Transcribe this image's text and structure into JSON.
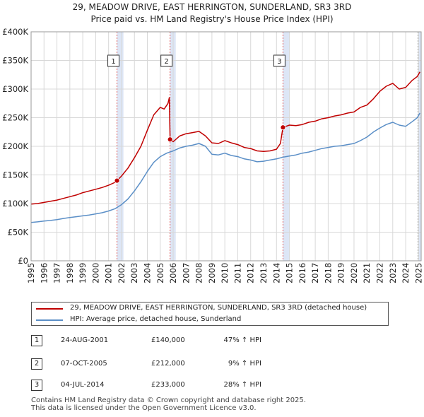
{
  "chart_data": {
    "type": "line",
    "title": "29, MEADOW DRIVE, EAST HERRINGTON, SUNDERLAND, SR3 3RD",
    "subtitle": "Price paid vs. HM Land Registry's House Price Index (HPI)",
    "xlim": [
      1995,
      2025.2
    ],
    "ylim": [
      0,
      400000
    ],
    "y_ticks": [
      0,
      50000,
      100000,
      150000,
      200000,
      250000,
      300000,
      350000,
      400000
    ],
    "y_tick_labels": [
      "£0",
      "£50K",
      "£100K",
      "£150K",
      "£200K",
      "£250K",
      "£300K",
      "£350K",
      "£400K"
    ],
    "x_ticks": [
      1995,
      1996,
      1997,
      1998,
      1999,
      2000,
      2001,
      2002,
      2003,
      2004,
      2005,
      2006,
      2007,
      2008,
      2009,
      2010,
      2011,
      2012,
      2013,
      2014,
      2015,
      2016,
      2017,
      2018,
      2019,
      2020,
      2021,
      2022,
      2023,
      2024,
      2025
    ],
    "x_tick_labels": [
      "1995",
      "1996",
      "1997",
      "1998",
      "1999",
      "2000",
      "2001",
      "2002",
      "2003",
      "2004",
      "2005",
      "2006",
      "2007",
      "2008",
      "2009",
      "2010",
      "2011",
      "2012",
      "2013",
      "2014",
      "2015",
      "2016",
      "2017",
      "2018",
      "2019",
      "2020",
      "2021",
      "2022",
      "2023",
      "2024",
      "2025"
    ],
    "grid": true,
    "series": [
      {
        "name": "29, MEADOW DRIVE, EAST HERRINGTON, SUNDERLAND, SR3 3RD (detached house)",
        "color": "#c00000",
        "x": [
          1995.0,
          1995.5,
          1996.0,
          1996.5,
          1997.0,
          1997.5,
          1998.0,
          1998.5,
          1999.0,
          1999.5,
          2000.0,
          2000.5,
          2001.0,
          2001.5,
          2001.65,
          2002.0,
          2002.5,
          2003.0,
          2003.5,
          2004.0,
          2004.5,
          2005.0,
          2005.3,
          2005.6,
          2005.7,
          2005.76,
          2006.0,
          2006.5,
          2007.0,
          2007.5,
          2008.0,
          2008.5,
          2009.0,
          2009.5,
          2010.0,
          2010.5,
          2011.0,
          2011.5,
          2012.0,
          2012.5,
          2013.0,
          2013.5,
          2014.0,
          2014.3,
          2014.5,
          2015.0,
          2015.5,
          2016.0,
          2016.5,
          2017.0,
          2017.5,
          2018.0,
          2018.5,
          2019.0,
          2019.5,
          2020.0,
          2020.5,
          2021.0,
          2021.5,
          2022.0,
          2022.5,
          2023.0,
          2023.5,
          2024.0,
          2024.5,
          2024.9,
          2025.1
        ],
        "values": [
          99000,
          100000,
          102000,
          104000,
          106000,
          109000,
          112000,
          115000,
          119000,
          122000,
          125000,
          128000,
          132000,
          137000,
          140000,
          148000,
          162000,
          180000,
          200000,
          228000,
          255000,
          268000,
          265000,
          275000,
          285000,
          212000,
          208000,
          218000,
          222000,
          224000,
          226000,
          218000,
          206000,
          205000,
          210000,
          206000,
          203000,
          198000,
          196000,
          192000,
          191000,
          192000,
          195000,
          205000,
          233000,
          237000,
          236000,
          238000,
          242000,
          244000,
          248000,
          250000,
          253000,
          255000,
          258000,
          260000,
          268000,
          272000,
          283000,
          296000,
          305000,
          310000,
          300000,
          303000,
          315000,
          322000,
          330000
        ]
      },
      {
        "name": "HPI: Average price, detached house, Sunderland",
        "color": "#5b8fc7",
        "x": [
          1995.0,
          1995.5,
          1996.0,
          1996.5,
          1997.0,
          1997.5,
          1998.0,
          1998.5,
          1999.0,
          1999.5,
          2000.0,
          2000.5,
          2001.0,
          2001.5,
          2002.0,
          2002.5,
          2003.0,
          2003.5,
          2004.0,
          2004.5,
          2005.0,
          2005.5,
          2006.0,
          2006.5,
          2007.0,
          2007.5,
          2008.0,
          2008.5,
          2009.0,
          2009.5,
          2010.0,
          2010.5,
          2011.0,
          2011.5,
          2012.0,
          2012.5,
          2013.0,
          2013.5,
          2014.0,
          2014.5,
          2015.0,
          2015.5,
          2016.0,
          2016.5,
          2017.0,
          2017.5,
          2018.0,
          2018.5,
          2019.0,
          2019.5,
          2020.0,
          2020.5,
          2021.0,
          2021.5,
          2022.0,
          2022.5,
          2023.0,
          2023.5,
          2024.0,
          2024.5,
          2024.9,
          2025.1
        ],
        "values": [
          67000,
          68000,
          69500,
          70500,
          72000,
          74000,
          75500,
          77000,
          78500,
          80000,
          82000,
          84000,
          87000,
          91000,
          98000,
          108000,
          122000,
          138000,
          156000,
          172000,
          182000,
          188000,
          192000,
          197000,
          200000,
          202000,
          205000,
          200000,
          186000,
          185000,
          188000,
          184000,
          182000,
          178000,
          176000,
          173000,
          174000,
          176000,
          178000,
          181000,
          183000,
          185000,
          188000,
          190000,
          193000,
          196000,
          198000,
          200000,
          201000,
          203000,
          205000,
          210000,
          216000,
          225000,
          232000,
          238000,
          242000,
          237000,
          235000,
          243000,
          250000,
          258000
        ]
      }
    ],
    "events": [
      {
        "label": "1",
        "x": 2001.65,
        "y": 140000
      },
      {
        "label": "2",
        "x": 2005.76,
        "y": 212000
      },
      {
        "label": "3",
        "x": 2014.5,
        "y": 233000
      }
    ],
    "shade_color": "#dde6f6",
    "vline_color": "#e06060"
  },
  "legend": {
    "series1_label": "29, MEADOW DRIVE, EAST HERRINGTON, SUNDERLAND, SR3 3RD (detached house)",
    "series2_label": "HPI: Average price, detached house, Sunderland"
  },
  "transactions": [
    {
      "num": "1",
      "date": "24-AUG-2001",
      "price": "£140,000",
      "hpi": "47% ↑ HPI"
    },
    {
      "num": "2",
      "date": "07-OCT-2005",
      "price": "£212,000",
      "hpi": "9% ↑ HPI"
    },
    {
      "num": "3",
      "date": "04-JUL-2014",
      "price": "£233,000",
      "hpi": "28% ↑ HPI"
    }
  ],
  "footer": {
    "line1": "Contains HM Land Registry data © Crown copyright and database right 2025.",
    "line2": "This data is licensed under the Open Government Licence v3.0."
  }
}
